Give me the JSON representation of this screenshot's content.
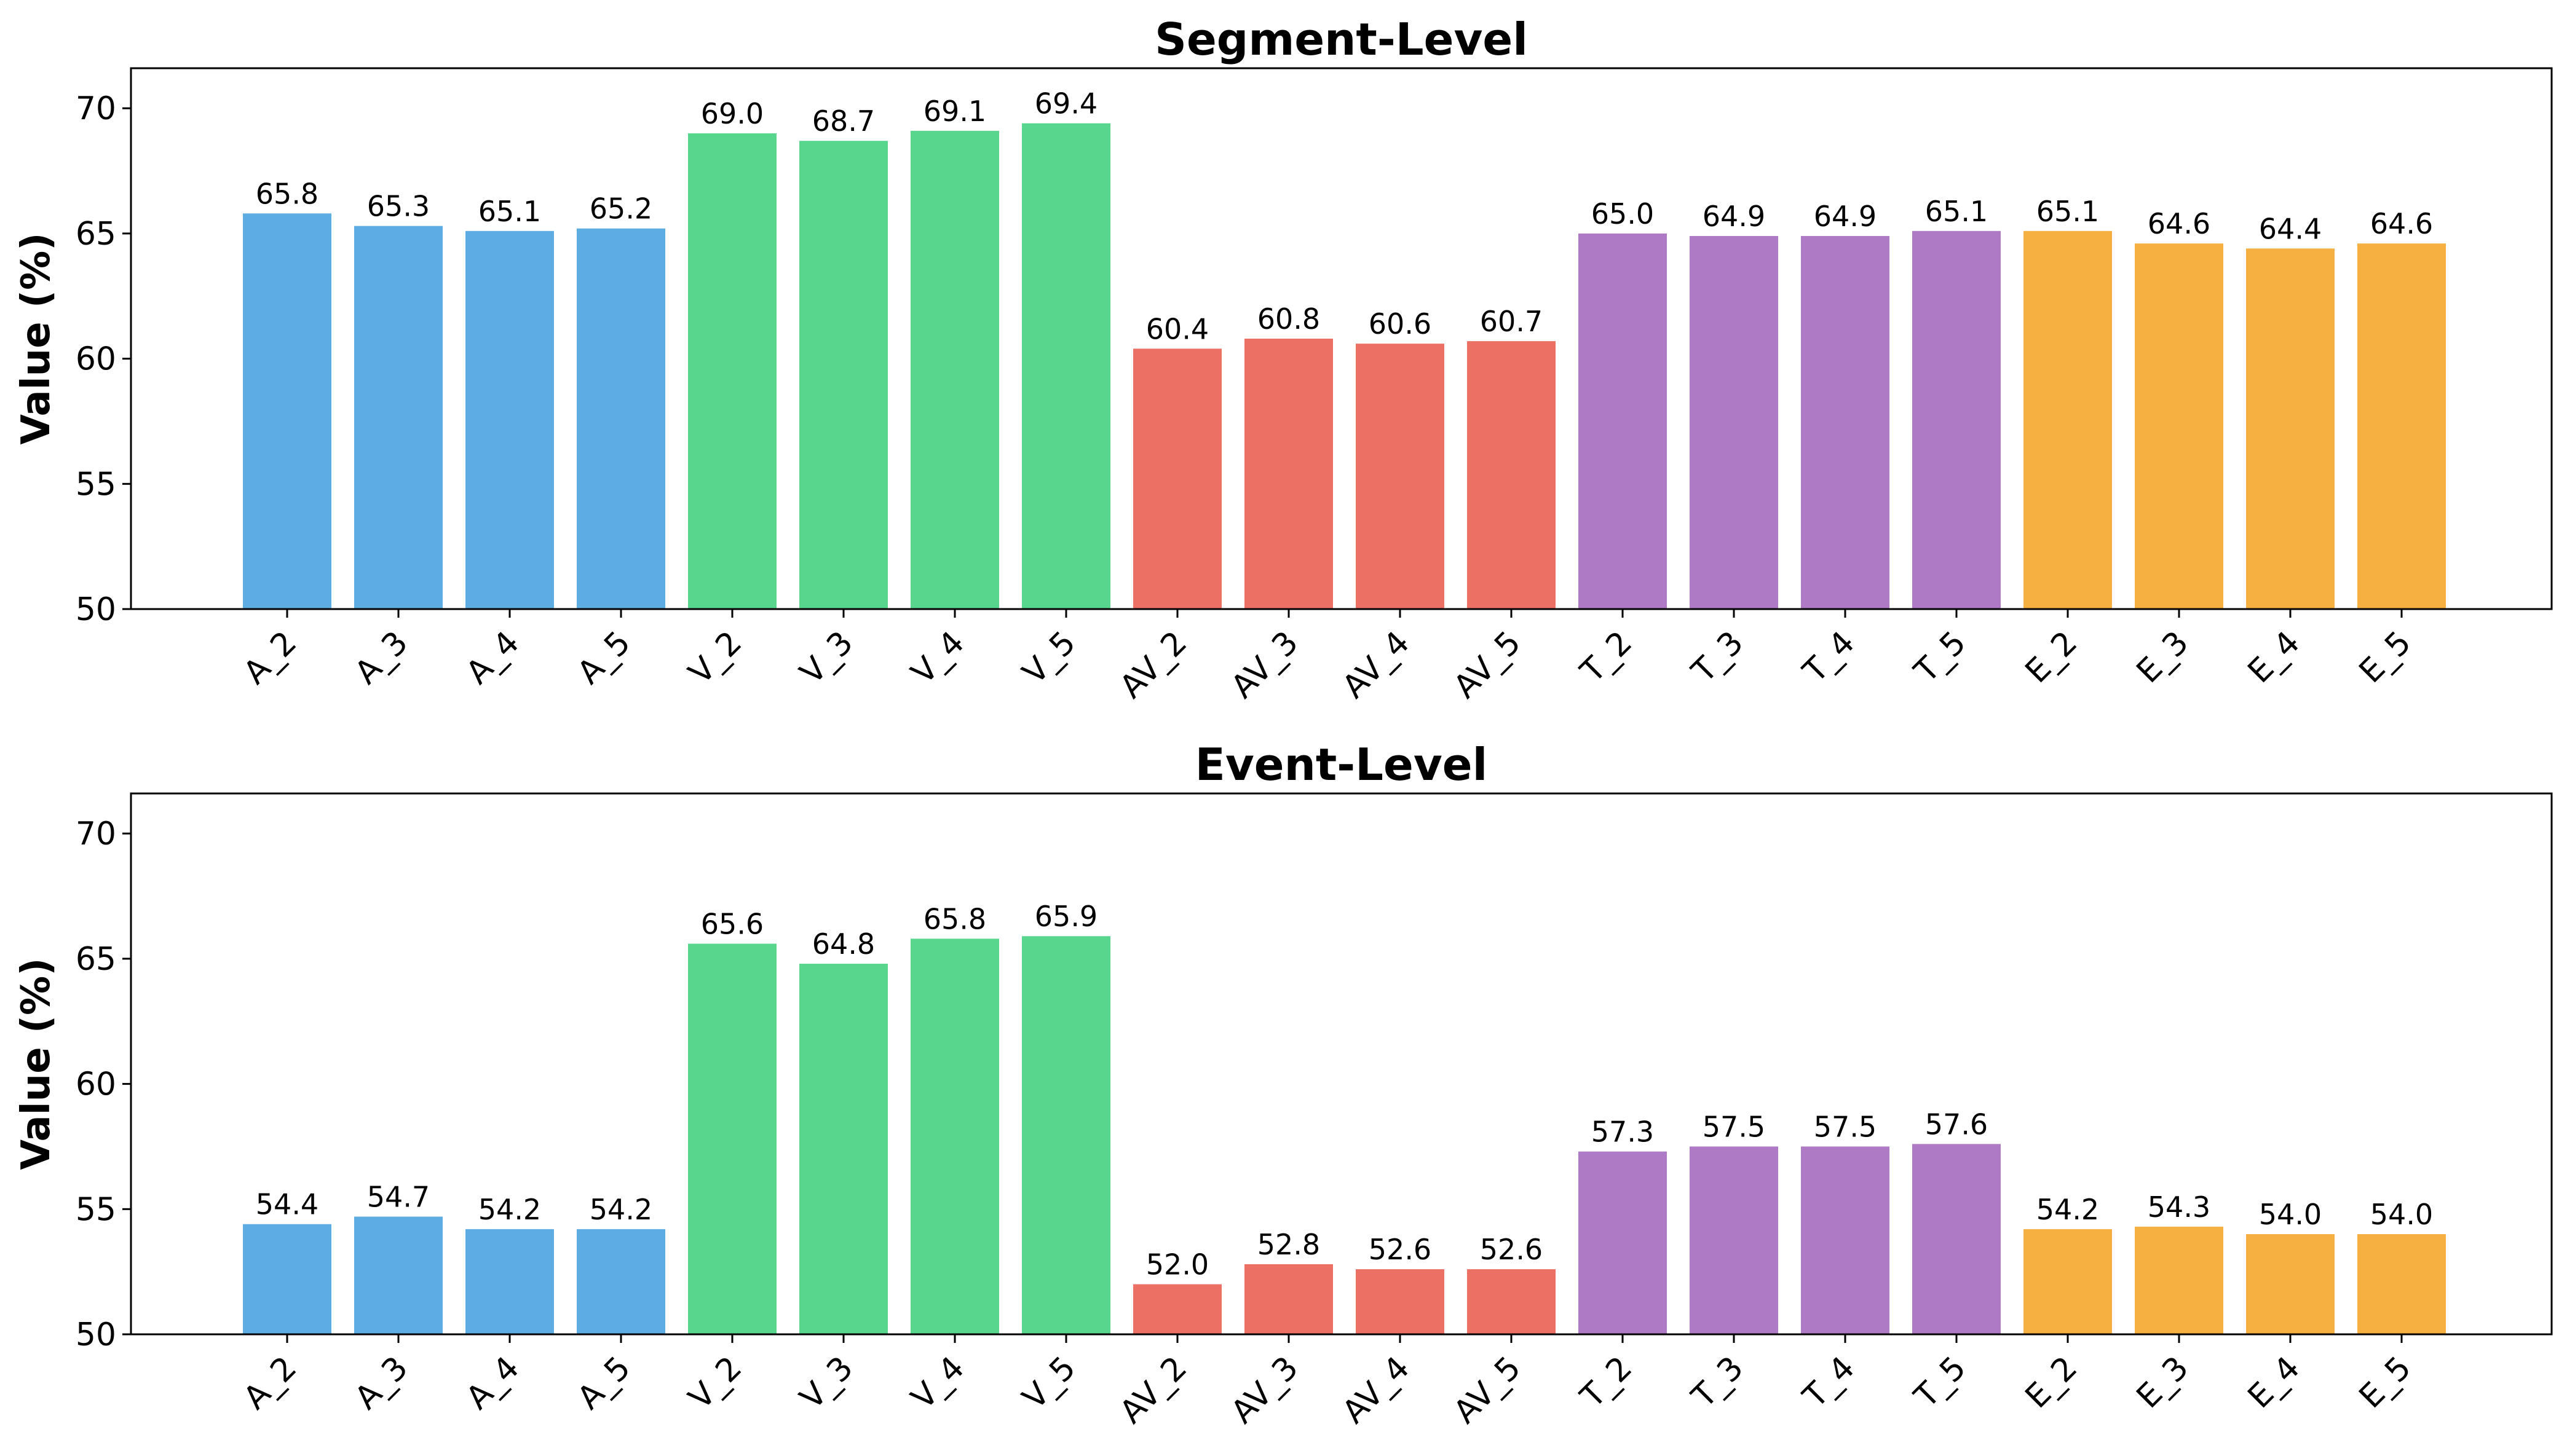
{
  "chart_data": [
    {
      "type": "bar",
      "title": "Segment-Level",
      "xlabel": "",
      "ylabel": "Value (%)",
      "ylim": [
        50,
        71.6
      ],
      "yticks": [
        50,
        55,
        60,
        65,
        70
      ],
      "categories": [
        "A_2",
        "A_3",
        "A_4",
        "A_5",
        "V_2",
        "V_3",
        "V_4",
        "V_5",
        "AV_2",
        "AV_3",
        "AV_4",
        "AV_5",
        "T_2",
        "T_3",
        "T_4",
        "T_5",
        "E_2",
        "E_3",
        "E_4",
        "E_5"
      ],
      "values": [
        65.8,
        65.3,
        65.1,
        65.2,
        69.0,
        68.7,
        69.1,
        69.4,
        60.4,
        60.8,
        60.6,
        60.7,
        65.0,
        64.9,
        64.9,
        65.1,
        65.1,
        64.6,
        64.4,
        64.6
      ],
      "value_labels": [
        "65.8",
        "65.3",
        "65.1",
        "65.2",
        "69.0",
        "68.7",
        "69.1",
        "69.4",
        "60.4",
        "60.8",
        "60.6",
        "60.7",
        "65.0",
        "64.9",
        "64.9",
        "65.1",
        "65.1",
        "64.6",
        "64.4",
        "64.6"
      ]
    },
    {
      "type": "bar",
      "title": "Event-Level",
      "xlabel": "",
      "ylabel": "Value (%)",
      "ylim": [
        50,
        71.6
      ],
      "yticks": [
        50,
        55,
        60,
        65,
        70
      ],
      "categories": [
        "A_2",
        "A_3",
        "A_4",
        "A_5",
        "V_2",
        "V_3",
        "V_4",
        "V_5",
        "AV_2",
        "AV_3",
        "AV_4",
        "AV_5",
        "T_2",
        "T_3",
        "T_4",
        "T_5",
        "E_2",
        "E_3",
        "E_4",
        "E_5"
      ],
      "values": [
        54.4,
        54.7,
        54.2,
        54.2,
        65.6,
        64.8,
        65.8,
        65.9,
        52.0,
        52.8,
        52.6,
        52.6,
        57.3,
        57.5,
        57.5,
        57.6,
        54.2,
        54.3,
        54.0,
        54.0
      ],
      "value_labels": [
        "54.4",
        "54.7",
        "54.2",
        "54.2",
        "65.6",
        "64.8",
        "65.8",
        "65.9",
        "52.0",
        "52.8",
        "52.6",
        "52.6",
        "57.3",
        "57.5",
        "57.5",
        "57.6",
        "54.2",
        "54.3",
        "54.0",
        "54.0"
      ]
    }
  ],
  "group_colors": [
    "#5dade2",
    "#5dade2",
    "#5dade2",
    "#5dade2",
    "#58d68d",
    "#58d68d",
    "#58d68d",
    "#58d68d",
    "#ec7063",
    "#ec7063",
    "#ec7063",
    "#ec7063",
    "#af7ac5",
    "#af7ac5",
    "#af7ac5",
    "#af7ac5",
    "#f5b041",
    "#f5b041",
    "#f5b041",
    "#f5b041"
  ]
}
